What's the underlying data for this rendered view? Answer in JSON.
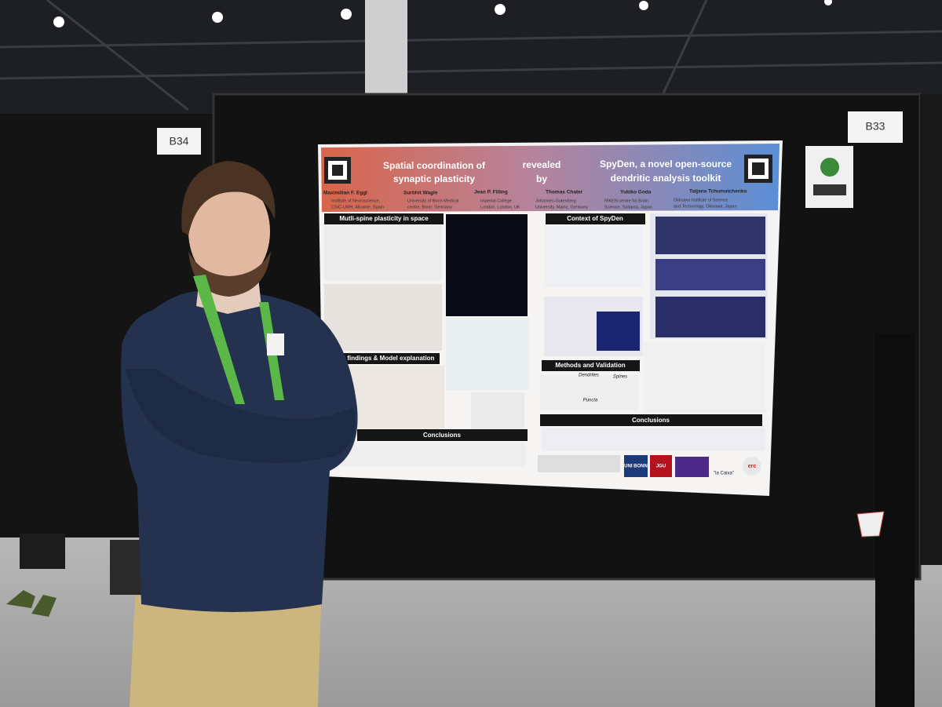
{
  "boards": [
    {
      "label": "B34"
    },
    {
      "label": "B33"
    }
  ],
  "poster": {
    "title_left": [
      "Spatial coordination of",
      "synaptic plasticity"
    ],
    "title_middle": [
      "revealed",
      "by"
    ],
    "title_right": [
      "SpyDen, a novel open-source",
      "dendritic analysis toolkit"
    ],
    "authors": [
      "Maximilian F. Eggl",
      "Surbhit Wagle",
      "Jean P. Filling",
      "Thomas Chater",
      "Yukiko Goda",
      "Tatjana Tchumatchenko"
    ],
    "affiliations": [
      [
        "Institute of Neuroscience,",
        "CSIC-UMH, Alicante, Spain"
      ],
      [
        "University of Bonn Medical",
        "centre, Bonn, Germany"
      ],
      [
        "Imperial College",
        "London, London, UK"
      ],
      [
        "Johannes-Gutenberg",
        "University, Mainz, Germany"
      ],
      [
        "RIKEN centre for Brain",
        "Science, Saitama, Japan"
      ],
      [
        "Okinawa Institute of Science",
        "and Technology, Okinawa, Japan"
      ]
    ],
    "sections": [
      "Mutli-spine plasticity in space",
      "Context of SpyDen",
      "Expt. findings & Model explanation",
      "Methods and Validation",
      "Conclusions",
      "Conclusions"
    ],
    "subsections": [
      "Dendrites",
      "Spines",
      "Puncta"
    ],
    "logos": [
      "UNI BONN",
      "JGU",
      "\"la Caixa\"",
      "erc"
    ]
  }
}
